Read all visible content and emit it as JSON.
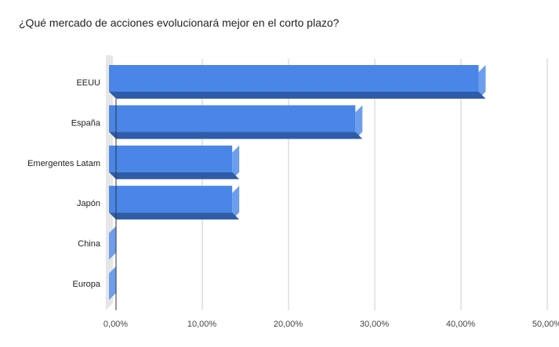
{
  "chart_data": {
    "type": "bar",
    "orientation": "horizontal",
    "style": "3d",
    "title": "¿Qué mercado de acciones evolucionará mejor en el corto plazo?",
    "categories": [
      "EEUU",
      "España",
      "Emergentes Latam",
      "Japón",
      "China",
      "Europa"
    ],
    "values": [
      42.86,
      28.57,
      14.29,
      14.29,
      0,
      0
    ],
    "xlim": [
      0,
      50
    ],
    "x_ticks": [
      "0,00%",
      "10,00%",
      "20,00%",
      "30,00%",
      "40,00%",
      "50,00%"
    ],
    "grid": true,
    "legend": "none",
    "colors": {
      "bar_front": "#4a86e8",
      "bar_top": "#2f5ca8",
      "bar_side": "#6d9eeb",
      "grid": "#cccccc",
      "floor": "#e6e6e6"
    }
  }
}
